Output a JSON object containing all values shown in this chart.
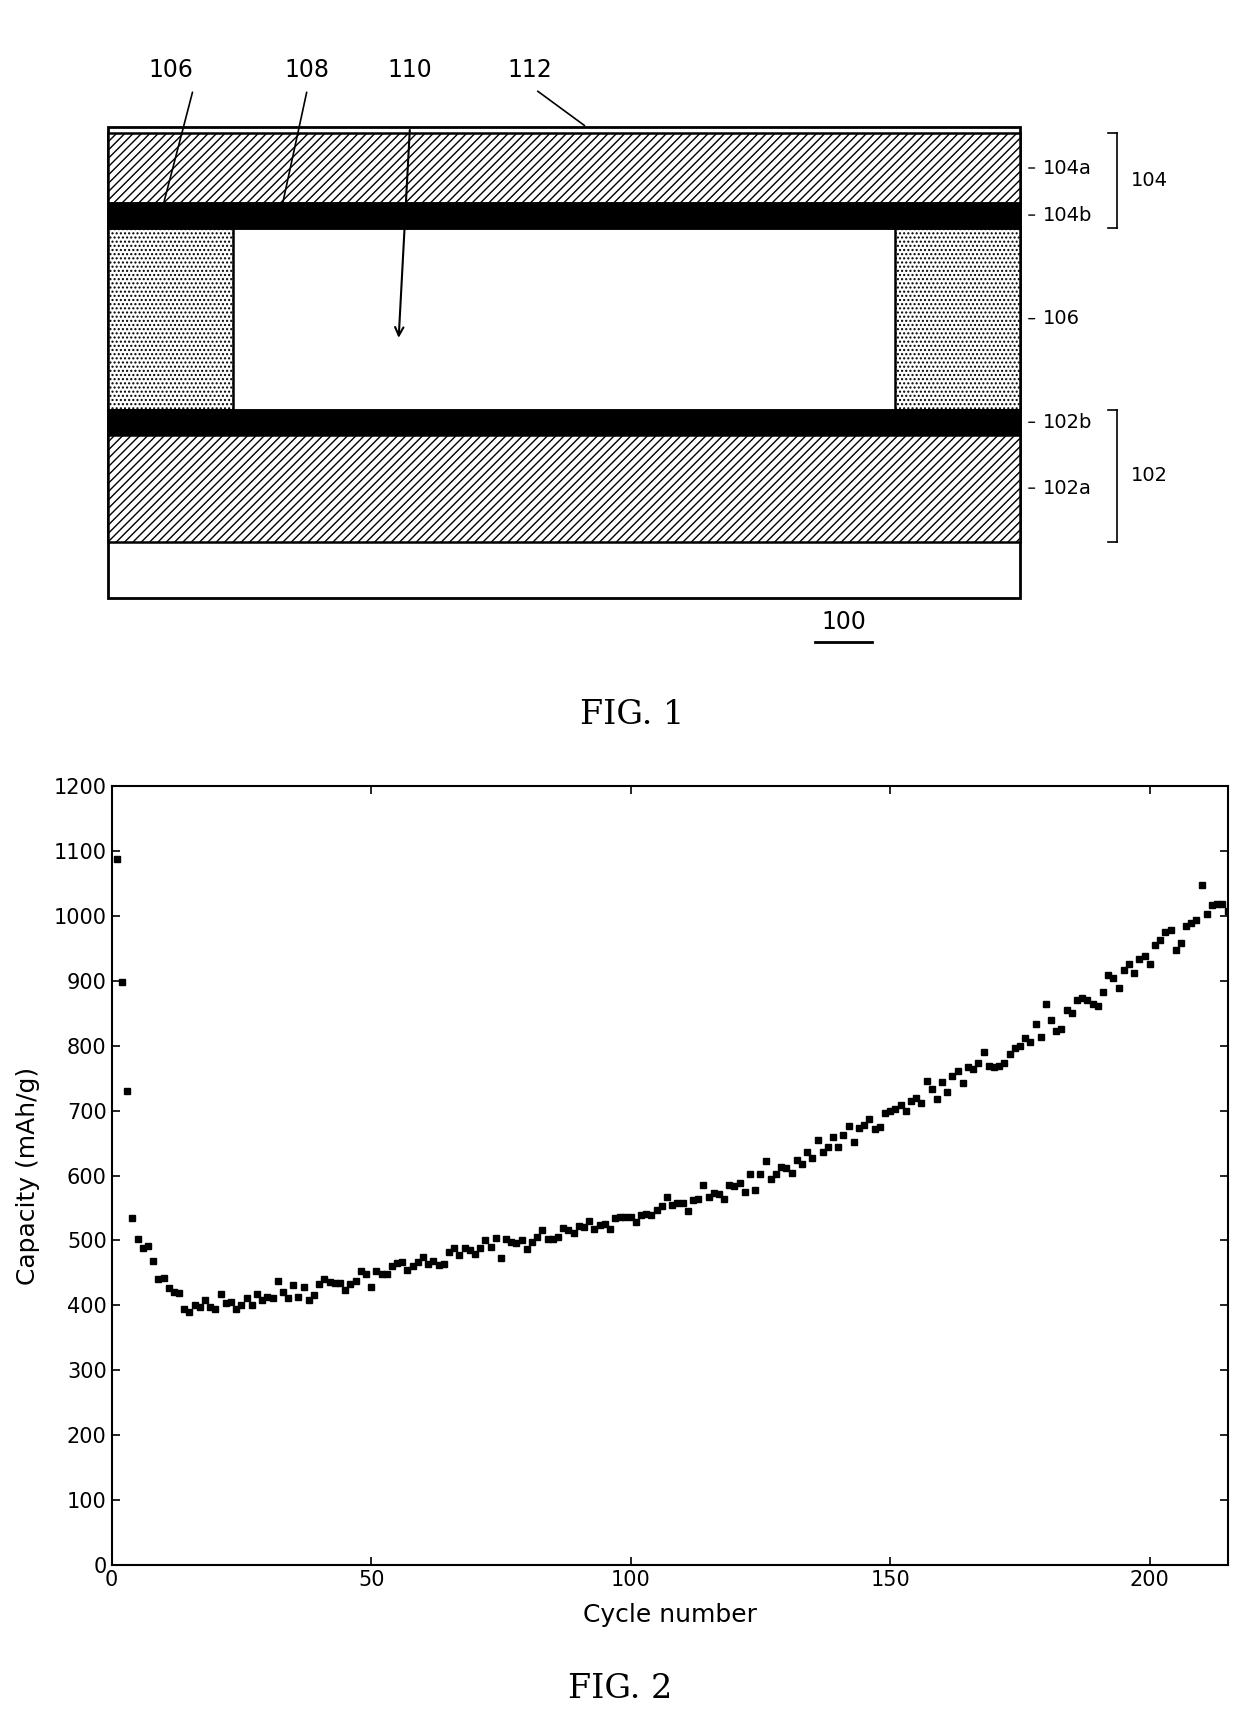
{
  "fig1": {
    "fig_label": "FIG. 1",
    "label_100": "100"
  },
  "fig2": {
    "xlabel": "Cycle number",
    "ylabel": "Capacity (mAh/g)",
    "xlim": [
      0,
      215
    ],
    "ylim": [
      0,
      1200
    ],
    "xticks": [
      0,
      50,
      100,
      150,
      200
    ],
    "yticks": [
      0,
      100,
      200,
      300,
      400,
      500,
      600,
      700,
      800,
      900,
      1000,
      1100,
      1200
    ],
    "fig_label": "FIG. 2",
    "plot_color": "#000000",
    "marker": "s",
    "markersize": 4
  },
  "background_color": "#ffffff"
}
